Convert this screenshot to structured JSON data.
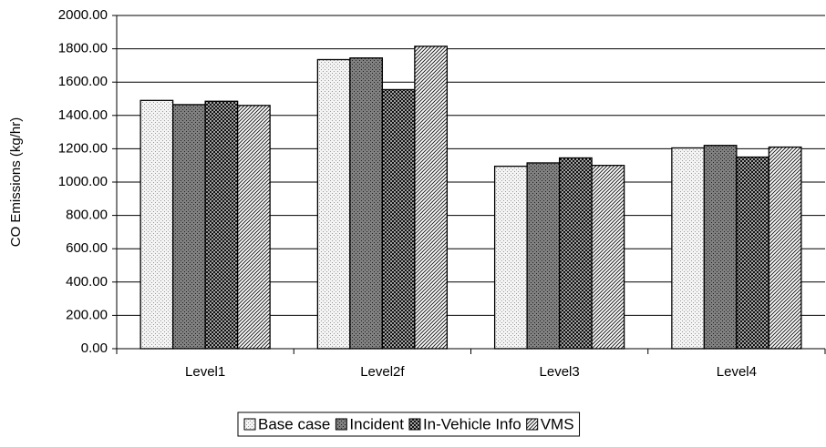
{
  "chart_data": {
    "type": "bar",
    "y_label": "CO Emissions (kg/hr)",
    "categories": [
      "Level1",
      "Level2f",
      "Level3",
      "Level4"
    ],
    "series": [
      {
        "name": "Base case",
        "color": "#f4f4f4",
        "values": [
          1490,
          1735,
          1095,
          1205
        ]
      },
      {
        "name": "Incident",
        "color": "#808080",
        "values": [
          1465,
          1745,
          1115,
          1220
        ]
      },
      {
        "name": "In-Vehicle Info",
        "color": "#a0a0a0",
        "values": [
          1485,
          1555,
          1145,
          1150
        ]
      },
      {
        "name": "VMS",
        "color": "#ffffff",
        "values": [
          1460,
          1815,
          1100,
          1210
        ]
      }
    ],
    "ylim": [
      0,
      2000
    ],
    "yticks": [
      {
        "value": 0,
        "label": "0.00"
      },
      {
        "value": 200,
        "label": "200.00"
      },
      {
        "value": 400,
        "label": "400.00"
      },
      {
        "value": 600,
        "label": "600.00"
      },
      {
        "value": 800,
        "label": "800.00"
      },
      {
        "value": 1000,
        "label": "1000.00"
      },
      {
        "value": 1200,
        "label": "1200.00"
      },
      {
        "value": 1400,
        "label": "1400.00"
      },
      {
        "value": 1600,
        "label": "1600.00"
      },
      {
        "value": 1800,
        "label": "1800.00"
      },
      {
        "value": 2000,
        "label": "2000.00"
      }
    ],
    "grid": true,
    "legend": "bottom"
  }
}
